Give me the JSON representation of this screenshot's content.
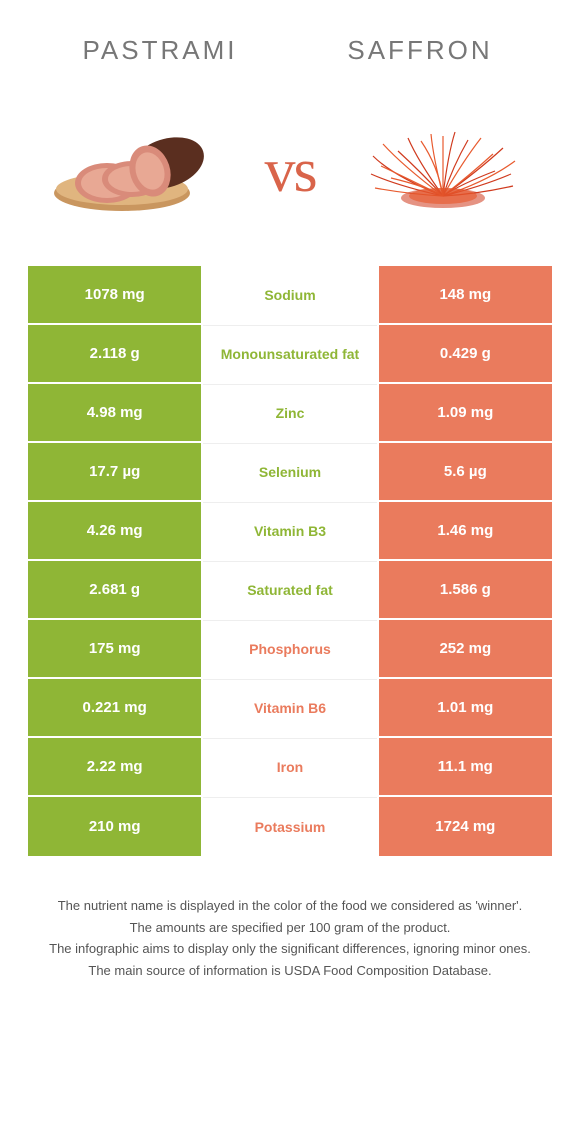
{
  "titles": {
    "left": "PASTRAMI",
    "right": "SAFFRON"
  },
  "vs": "vs",
  "colors": {
    "left_bg": "#8fb636",
    "right_bg": "#ea7b5d",
    "left_text": "#ffffff",
    "right_text": "#ffffff",
    "title_color": "#777777",
    "vs_color": "#d9644a",
    "winner_left": "#8fb636",
    "winner_right": "#ea7b5d"
  },
  "rows": [
    {
      "left": "1078 mg",
      "label": "Sodium",
      "right": "148 mg",
      "winner": "left"
    },
    {
      "left": "2.118 g",
      "label": "Monounsaturated fat",
      "right": "0.429 g",
      "winner": "left"
    },
    {
      "left": "4.98 mg",
      "label": "Zinc",
      "right": "1.09 mg",
      "winner": "left"
    },
    {
      "left": "17.7 µg",
      "label": "Selenium",
      "right": "5.6 µg",
      "winner": "left"
    },
    {
      "left": "4.26 mg",
      "label": "Vitamin B3",
      "right": "1.46 mg",
      "winner": "left"
    },
    {
      "left": "2.681 g",
      "label": "Saturated fat",
      "right": "1.586 g",
      "winner": "left"
    },
    {
      "left": "175 mg",
      "label": "Phosphorus",
      "right": "252 mg",
      "winner": "right"
    },
    {
      "left": "0.221 mg",
      "label": "Vitamin B6",
      "right": "1.01 mg",
      "winner": "right"
    },
    {
      "left": "2.22 mg",
      "label": "Iron",
      "right": "11.1 mg",
      "winner": "right"
    },
    {
      "left": "210 mg",
      "label": "Potassium",
      "right": "1724 mg",
      "winner": "right"
    }
  ],
  "footer": [
    "The nutrient name is displayed in the color of the food we considered as 'winner'.",
    "The amounts are specified per 100 gram of the product.",
    "The infographic aims to display only the significant differences, ignoring minor ones.",
    "The main source of information is USDA Food Composition Database."
  ]
}
